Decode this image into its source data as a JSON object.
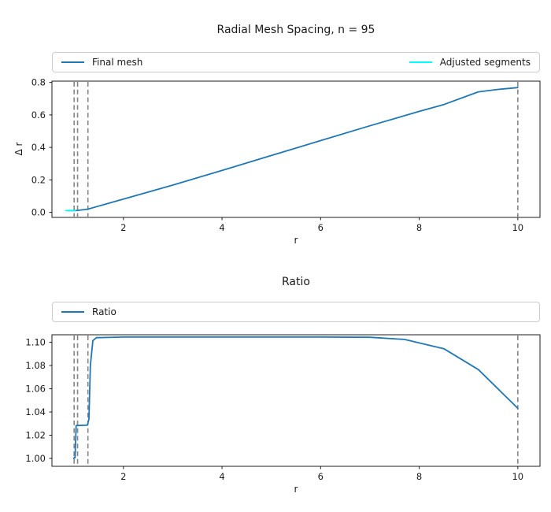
{
  "figure": {
    "background": "#ffffff",
    "spine_color": "#1c1c1c"
  },
  "chart_data": [
    {
      "type": "line",
      "title": "Radial Mesh Spacing, n = 95",
      "xlabel": "r",
      "ylabel": "Δ r",
      "xlim": [
        0.55,
        10.45
      ],
      "ylim": [
        -0.031,
        0.808
      ],
      "xticks": [
        2,
        4,
        6,
        8,
        10
      ],
      "yticks": [
        "0.0",
        "0.2",
        "0.4",
        "0.6",
        "0.8"
      ],
      "grid": false,
      "legend_position": "above-axes-expanded",
      "vlines": {
        "x": [
          1.0,
          1.07,
          1.28,
          10.0
        ],
        "color": "#858585",
        "style": "dashed"
      },
      "series": [
        {
          "name": "Final mesh",
          "color": "#1f77b4",
          "points": [
            [
              0.86,
              0.011
            ],
            [
              1.0,
              0.011
            ],
            [
              1.07,
              0.012
            ],
            [
              1.28,
              0.02
            ],
            [
              2,
              0.082
            ],
            [
              3,
              0.168
            ],
            [
              4,
              0.258
            ],
            [
              5,
              0.35
            ],
            [
              6,
              0.442
            ],
            [
              7,
              0.533
            ],
            [
              8,
              0.622
            ],
            [
              8.5,
              0.664
            ],
            [
              9.2,
              0.742
            ],
            [
              9.6,
              0.757
            ],
            [
              10,
              0.768
            ]
          ]
        },
        {
          "name": "Adjusted segments",
          "color": "#00ffff",
          "points": [
            [
              0.83,
              0.0105
            ],
            [
              1.02,
              0.0105
            ]
          ]
        }
      ]
    },
    {
      "type": "line",
      "title": "Ratio",
      "xlabel": "r",
      "ylabel": "",
      "xlim": [
        0.55,
        10.45
      ],
      "ylim": [
        0.9932,
        1.1065
      ],
      "xticks": [
        2,
        4,
        6,
        8,
        10
      ],
      "yticks": [
        "1.00",
        "1.02",
        "1.04",
        "1.06",
        "1.08",
        "1.10"
      ],
      "grid": false,
      "legend_position": "above-axes-expanded",
      "vlines": {
        "x": [
          1.0,
          1.07,
          1.28,
          10.0
        ],
        "color": "#858585",
        "style": "dashed"
      },
      "series": [
        {
          "name": "Ratio",
          "color": "#1f77b4",
          "points": [
            [
              0.99,
              1.0
            ],
            [
              1.01,
              1.001
            ],
            [
              1.02,
              1.0005
            ],
            [
              1.04,
              1.0283
            ],
            [
              1.27,
              1.0287
            ],
            [
              1.3,
              1.034
            ],
            [
              1.33,
              1.08
            ],
            [
              1.38,
              1.1015
            ],
            [
              1.45,
              1.104
            ],
            [
              2,
              1.1045
            ],
            [
              3,
              1.1045
            ],
            [
              4,
              1.1045
            ],
            [
              5,
              1.1045
            ],
            [
              6,
              1.1045
            ],
            [
              7,
              1.1043
            ],
            [
              7.7,
              1.1025
            ],
            [
              8.5,
              1.0945
            ],
            [
              9.2,
              1.0765
            ],
            [
              10,
              1.0432
            ]
          ]
        }
      ]
    }
  ]
}
